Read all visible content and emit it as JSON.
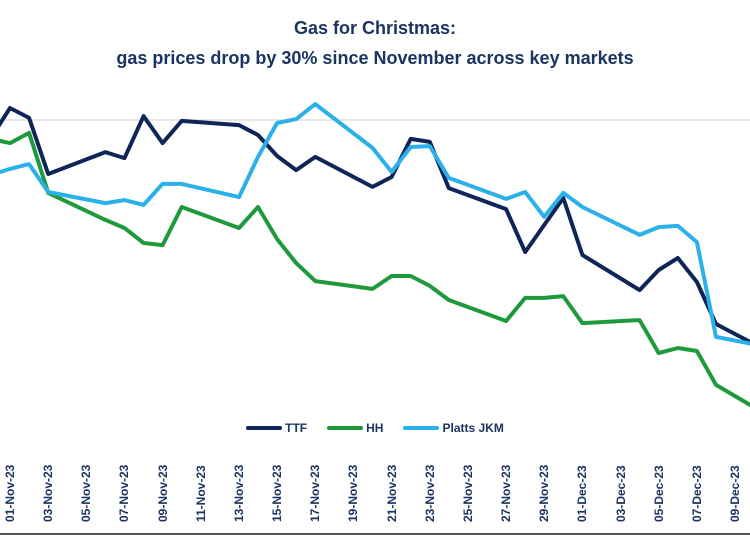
{
  "chart_data": {
    "type": "line",
    "title": "Gas for Christmas:",
    "subtitle": "gas prices drop by 30% since November across key markets",
    "xlabel": "",
    "ylabel": "",
    "xlim": [
      "2023-10-31",
      "2023-12-10"
    ],
    "ylim": [
      0,
      108
    ],
    "grid": "single horizontal gridline at 100",
    "gridline": 100,
    "legend_position": "bottom",
    "x_tick_labels": [
      "01-Nov-23",
      "03-Nov-23",
      "05-Nov-23",
      "07-Nov-23",
      "09-Nov-23",
      "11-Nov-23",
      "13-Nov-23",
      "15-Nov-23",
      "17-Nov-23",
      "19-Nov-23",
      "21-Nov-23",
      "23-Nov-23",
      "25-Nov-23",
      "27-Nov-23",
      "29-Nov-23",
      "01-Dec-23",
      "03-Dec-23",
      "05-Dec-23",
      "07-Dec-23",
      "09-Dec-23"
    ],
    "x": [
      "2023-10-31",
      "2023-11-01",
      "2023-11-02",
      "2023-11-03",
      "2023-11-06",
      "2023-11-07",
      "2023-11-08",
      "2023-11-09",
      "2023-11-10",
      "2023-11-13",
      "2023-11-14",
      "2023-11-15",
      "2023-11-16",
      "2023-11-17",
      "2023-11-20",
      "2023-11-21",
      "2023-11-22",
      "2023-11-23",
      "2023-11-24",
      "2023-11-27",
      "2023-11-28",
      "2023-11-29",
      "2023-11-30",
      "2023-12-01",
      "2023-12-04",
      "2023-12-05",
      "2023-12-06",
      "2023-12-07",
      "2023-12-08",
      "2023-12-11"
    ],
    "series": [
      {
        "name": "TTF",
        "color": "#0f2557",
        "values": [
          94,
          104,
          100.7,
          82,
          89.3,
          87.3,
          101.3,
          92.3,
          99.7,
          98.3,
          95,
          88,
          83.3,
          87.7,
          77.7,
          81,
          93.7,
          92.7,
          77.3,
          70.3,
          56,
          65,
          74,
          55,
          43.3,
          50,
          54,
          46,
          32,
          22
        ]
      },
      {
        "name": "HH",
        "color": "#1e9a3c",
        "values": [
          93.7,
          92.3,
          95.7,
          75.7,
          66.7,
          64,
          59,
          58.3,
          71,
          64,
          71,
          60.3,
          52.3,
          46.3,
          43.7,
          48,
          48,
          44.7,
          40,
          33,
          40.7,
          40.7,
          41.3,
          32.3,
          33.3,
          22.3,
          24,
          23,
          11.7,
          0.5
        ]
      },
      {
        "name": "Platts JKM",
        "color": "#2bb1e8",
        "values": [
          81.7,
          83.7,
          85.3,
          76,
          72.3,
          73.3,
          71.7,
          78.7,
          78.7,
          74.3,
          87.7,
          99,
          100.3,
          105.3,
          90.7,
          82.7,
          91,
          91.3,
          80.7,
          73.7,
          76,
          67.7,
          75.7,
          71,
          61.7,
          64.3,
          64.7,
          59.3,
          27.7,
          24
        ]
      }
    ]
  }
}
